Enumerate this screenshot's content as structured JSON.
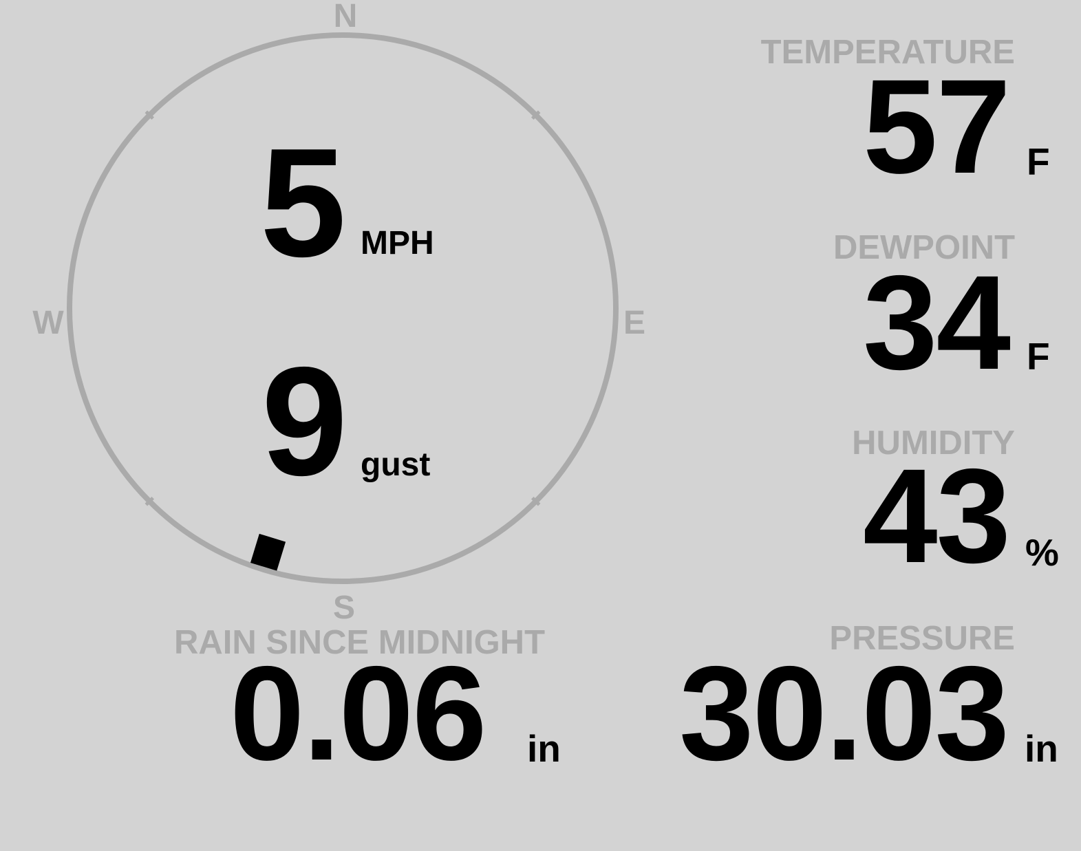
{
  "compass": {
    "north": "N",
    "south": "S",
    "east": "E",
    "west": "W",
    "wind_direction_deg": 197,
    "ring_color": "#aaaaaa",
    "marker_color": "#000000"
  },
  "wind": {
    "speed": "5",
    "speed_unit": "MPH",
    "gust": "9",
    "gust_unit": "gust"
  },
  "temperature": {
    "label": "TEMPERATURE",
    "value": "57",
    "unit": "F"
  },
  "dewpoint": {
    "label": "DEWPOINT",
    "value": "34",
    "unit": "F"
  },
  "humidity": {
    "label": "HUMIDITY",
    "value": "43",
    "unit": "%"
  },
  "rain": {
    "label": "RAIN SINCE MIDNIGHT",
    "value": "0.06",
    "unit": "in"
  },
  "pressure": {
    "label": "PRESSURE",
    "value": "30.03",
    "unit": "in"
  },
  "colors": {
    "background": "#d3d3d3",
    "label": "#aaaaaa",
    "value": "#000000"
  }
}
